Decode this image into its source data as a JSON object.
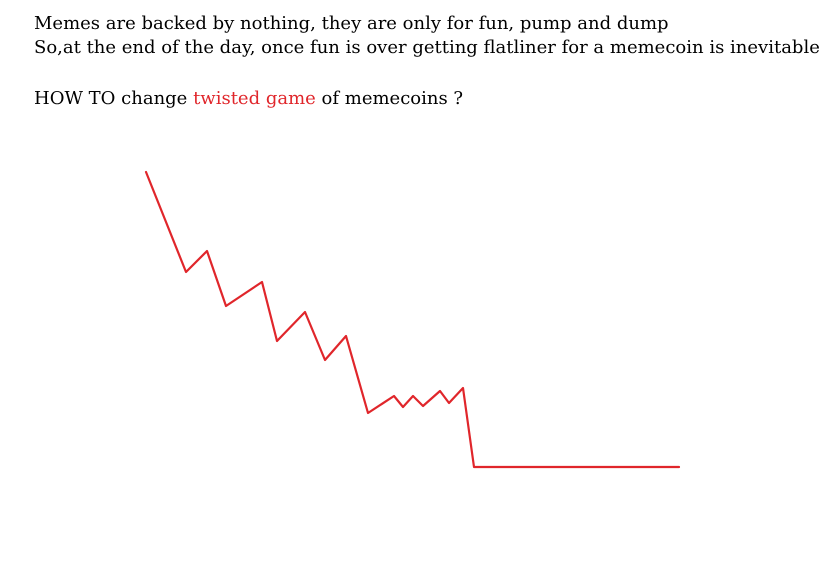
{
  "text": {
    "line1": "Memes are backed by nothing, they are only for fun, pump and dump",
    "line2": "So,at the end of the day, once fun is over getting flatliner for a memecoin is inevitable",
    "question_prefix": "HOW TO change ",
    "question_highlight": "twisted game",
    "question_suffix": " of memecoins ?"
  },
  "colors": {
    "text": "#000000",
    "highlight": "#e0262b",
    "line": "#e0262b"
  },
  "sketch": {
    "kind": "hand-drawn declining zigzag line ending in a flat line"
  }
}
